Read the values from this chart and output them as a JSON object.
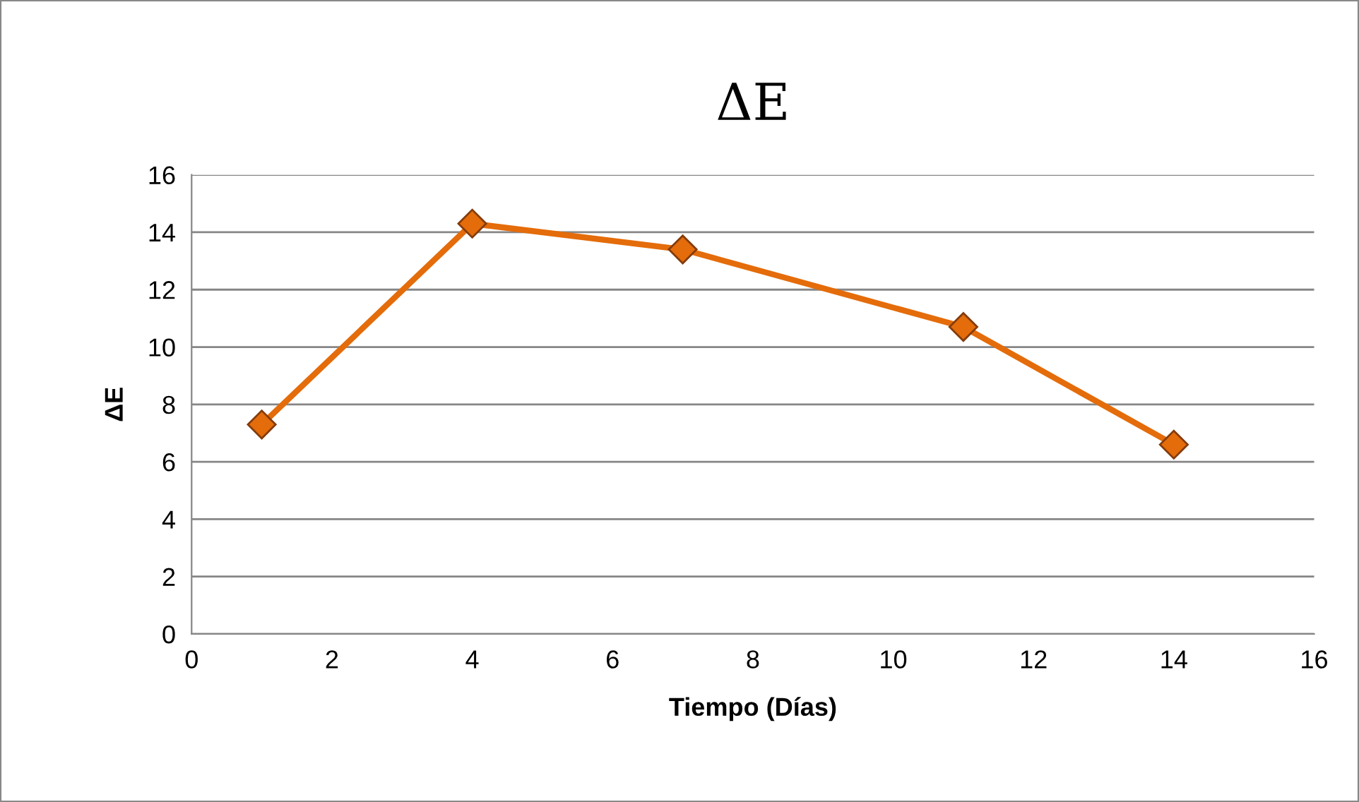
{
  "chart_data": {
    "type": "line",
    "title": "ΔE",
    "xlabel": "Tiempo (Días)",
    "ylabel": "ΔE",
    "x": [
      1,
      4,
      7,
      11,
      14
    ],
    "series": [
      {
        "color": "#e46c0a",
        "values": [
          7.3,
          14.3,
          13.4,
          10.7,
          6.6
        ]
      }
    ],
    "xlim": [
      0,
      16
    ],
    "xticks": [
      0,
      2,
      4,
      6,
      8,
      10,
      12,
      14,
      16
    ],
    "ylim": [
      0,
      16
    ],
    "yticks": [
      0,
      2,
      4,
      6,
      8,
      10,
      12,
      14,
      16
    ],
    "grid": "y",
    "marker": "diamond",
    "line_style": "solid"
  }
}
